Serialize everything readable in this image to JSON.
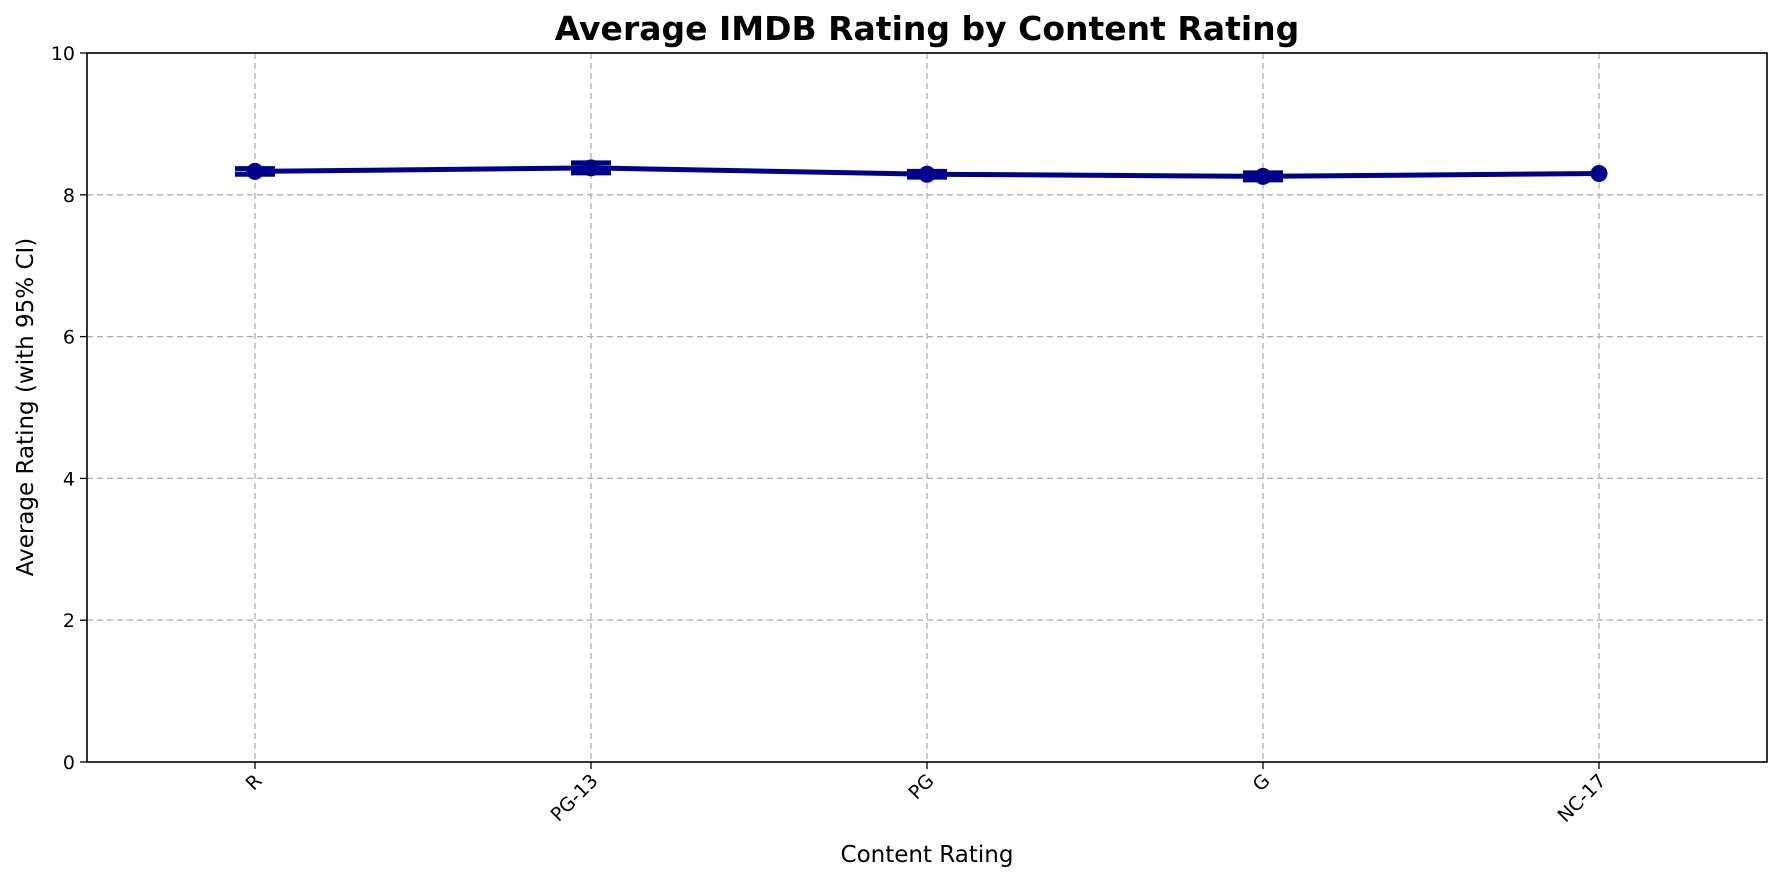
{
  "chart_data": {
    "type": "line",
    "title": "Average IMDB Rating by Content Rating",
    "xlabel": "Content Rating",
    "ylabel": "Average Rating (with 95% CI)",
    "categories": [
      "R",
      "PG-13",
      "PG",
      "G",
      "NC-17"
    ],
    "series": [
      {
        "values": [
          8.33,
          8.38,
          8.29,
          8.26,
          8.3
        ],
        "ci_low": [
          8.29,
          8.31,
          8.25,
          8.21,
          8.3
        ],
        "ci_high": [
          8.37,
          8.45,
          8.33,
          8.31,
          8.3
        ],
        "color": "#00008b"
      }
    ],
    "ylim": [
      0,
      10
    ],
    "yticks": [
      "0",
      "2",
      "4",
      "6",
      "8",
      "10"
    ],
    "grid": true
  }
}
